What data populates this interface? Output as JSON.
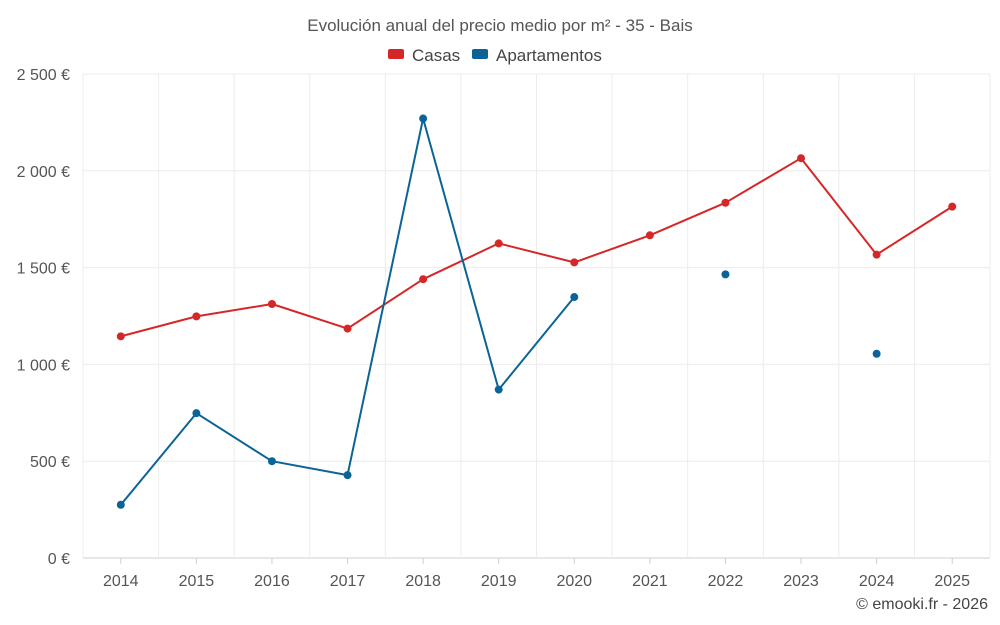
{
  "chart_data": {
    "type": "line",
    "title": "Evolución anual del precio medio por m² - 35 - Bais",
    "categories": [
      "2014",
      "2015",
      "2016",
      "2017",
      "2018",
      "2019",
      "2020",
      "2021",
      "2022",
      "2023",
      "2024",
      "2025"
    ],
    "series": [
      {
        "name": "Casas",
        "color": "#d62728",
        "values": [
          1145,
          1248,
          1312,
          1185,
          1440,
          1625,
          1527,
          1667,
          1835,
          2065,
          1567,
          1815
        ]
      },
      {
        "name": "Apartamentos",
        "color": "#0a6496",
        "values": [
          275,
          748,
          500,
          428,
          2270,
          870,
          1348,
          null,
          1465,
          null,
          1055,
          null
        ]
      }
    ],
    "ylim": [
      0,
      2500
    ],
    "yticks": [
      0,
      500,
      1000,
      1500,
      2000,
      2500
    ],
    "ytick_labels": [
      "0 €",
      "500 €",
      "1 000 €",
      "1 500 €",
      "2 000 €",
      "2 500 €"
    ],
    "xlabel": "",
    "ylabel": "",
    "grid": true,
    "legend_position": "top-center"
  },
  "credit": "© emooki.fr - 2026"
}
